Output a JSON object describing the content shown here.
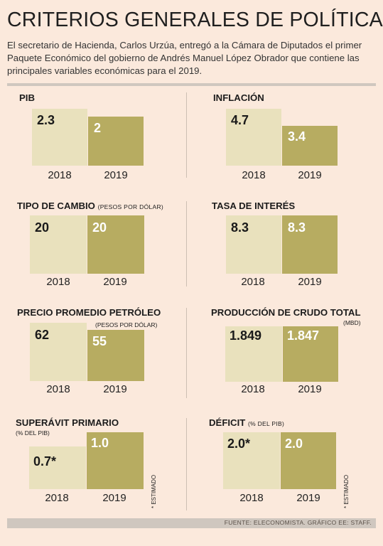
{
  "header": {
    "title": "CRITERIOS GENERALES DE POLÍTICA:",
    "subtitle": "El secretario de Hacienda, Carlos Urzúa, entregó a la Cámara de Diputados el primer Paquete Económico del gobierno de Andrés Manuel López Obrador que contiene las principales variables económicas para el 2019."
  },
  "colors": {
    "bar_2018": "#e9e1bd",
    "bar_2019": "#b7ac61",
    "background": "#fbe9dc"
  },
  "chart_data": [
    {
      "type": "bar",
      "title": "PIB",
      "unit": "",
      "categories": [
        "2018",
        "2019"
      ],
      "values": [
        2.3,
        2.0
      ],
      "labels": [
        "2.3",
        "2"
      ]
    },
    {
      "type": "bar",
      "title": "INFLACIÓN",
      "unit": "",
      "categories": [
        "2018",
        "2019"
      ],
      "values": [
        4.7,
        3.4
      ],
      "labels": [
        "4.7",
        "3.4"
      ]
    },
    {
      "type": "bar",
      "title": "TIPO DE CAMBIO",
      "unit": "(PESOS POR DÓLAR)",
      "categories": [
        "2018",
        "2019"
      ],
      "values": [
        20,
        20
      ],
      "labels": [
        "20",
        "20"
      ]
    },
    {
      "type": "bar",
      "title": "TASA DE INTERÉS",
      "unit": "",
      "categories": [
        "2018",
        "2019"
      ],
      "values": [
        8.3,
        8.3
      ],
      "labels": [
        "8.3",
        "8.3"
      ]
    },
    {
      "type": "bar",
      "title": "PRECIO PROMEDIO PETRÓLEO",
      "unit": "(PESOS POR DÓLAR)",
      "categories": [
        "2018",
        "2019"
      ],
      "values": [
        62,
        55
      ],
      "labels": [
        "62",
        "55"
      ]
    },
    {
      "type": "bar",
      "title": "PRODUCCIÓN DE CRUDO TOTAL",
      "unit": "(MBD)",
      "categories": [
        "2018",
        "2019"
      ],
      "values": [
        1.849,
        1.847
      ],
      "labels": [
        "1.849",
        "1.847"
      ]
    },
    {
      "type": "bar",
      "title": "SUPERÁVIT PRIMARIO",
      "unit": "(% DEL PIB)",
      "categories": [
        "2018",
        "2019"
      ],
      "values": [
        0.7,
        1.0
      ],
      "labels": [
        "0.7*",
        "1.0"
      ],
      "note": "* ESTIMADO"
    },
    {
      "type": "bar",
      "title": "DÉFICIT",
      "unit": "(% DEL PIB)",
      "categories": [
        "2018",
        "2019"
      ],
      "values": [
        2.0,
        2.0
      ],
      "labels": [
        "2.0*",
        "2.0"
      ],
      "note": "* ESTIMADO"
    }
  ],
  "footer": {
    "source": "FUENTE: ELECONOMISTA. GRÁFICO EE: STAFF."
  }
}
